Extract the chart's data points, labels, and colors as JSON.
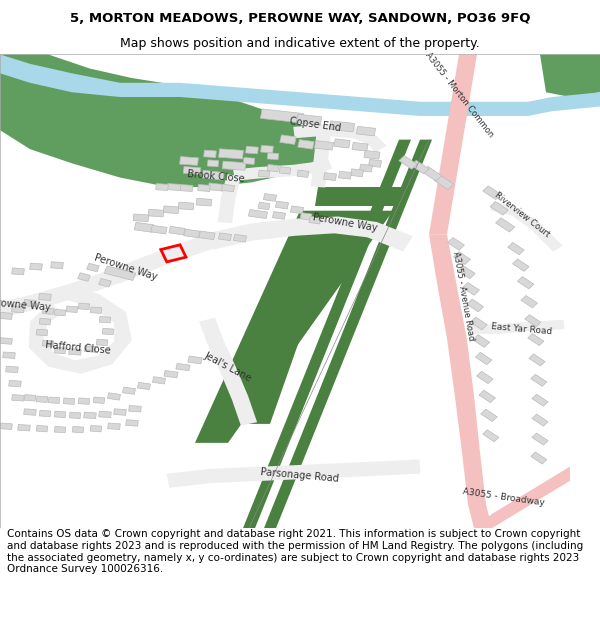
{
  "title_line1": "5, MORTON MEADOWS, PEROWNE WAY, SANDOWN, PO36 9FQ",
  "title_line2": "Map shows position and indicative extent of the property.",
  "footer_text": "Contains OS data © Crown copyright and database right 2021. This information is subject to Crown copyright and database rights 2023 and is reproduced with the permission of HM Land Registry. The polygons (including the associated geometry, namely x, y co-ordinates) are subject to Crown copyright and database rights 2023 Ordnance Survey 100026316.",
  "title_fontsize": 9.5,
  "footer_fontsize": 7.5,
  "page_bg": "#ffffff",
  "river_color": "#a8d8ea",
  "green_color": "#5f9e5f",
  "road_major_color": "#f4c0c0",
  "road_minor_color": "#e8e8e8",
  "building_color": "#d8d8d8",
  "building_edge": "#bbbbbb",
  "rail_color": "#4a8040",
  "plot_color": "#ff0000",
  "text_color": "#333333",
  "road_line_color": "#cccccc"
}
